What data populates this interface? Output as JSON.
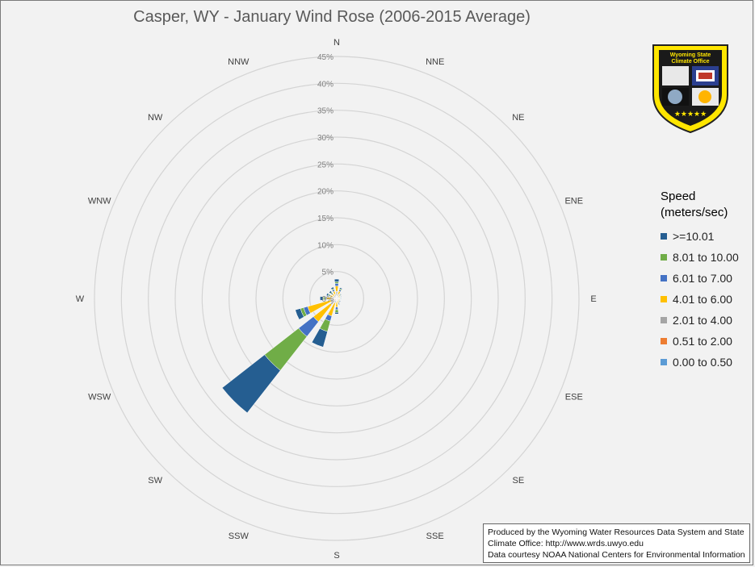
{
  "chart_data": {
    "type": "radar",
    "title": "Casper, WY - January Wind Rose (2006-2015 Average)",
    "directions": [
      "N",
      "NNE",
      "NE",
      "ENE",
      "E",
      "ESE",
      "SE",
      "SSE",
      "S",
      "SSW",
      "SW",
      "WSW",
      "W",
      "WNW",
      "NW",
      "NNW"
    ],
    "radial_ticks": [
      "0%",
      "5%",
      "10%",
      "15%",
      "20%",
      "25%",
      "30%",
      "35%",
      "40%",
      "45%"
    ],
    "rlim": [
      0,
      45
    ],
    "stacked": true,
    "legend_title": [
      "Speed",
      "(meters/sec)"
    ],
    "legend_placement": "right",
    "series": [
      {
        "name": "0.00 to 0.50",
        "color": "#5b9bd5",
        "values": [
          0.2,
          0.1,
          0.1,
          0.1,
          0.1,
          0.1,
          0.1,
          0.1,
          0.1,
          0.1,
          0.2,
          0.1,
          0.1,
          0.1,
          0.1,
          0.1
        ]
      },
      {
        "name": "0.51 to 2.00",
        "color": "#ed7d31",
        "values": [
          0.3,
          0.2,
          0.1,
          0.1,
          0.1,
          0.1,
          0.1,
          0.1,
          0.2,
          0.2,
          0.3,
          0.2,
          0.2,
          0.2,
          0.2,
          0.2
        ]
      },
      {
        "name": "2.01 to 4.00",
        "color": "#a5a5a5",
        "values": [
          0.8,
          0.5,
          0.3,
          0.2,
          0.2,
          0.2,
          0.2,
          0.3,
          0.4,
          0.6,
          1.0,
          0.8,
          0.6,
          0.5,
          0.4,
          0.5
        ]
      },
      {
        "name": "4.01 to 6.00",
        "color": "#ffc000",
        "values": [
          1.0,
          0.6,
          0.3,
          0.2,
          0.2,
          0.2,
          0.2,
          0.4,
          0.9,
          2.5,
          4.0,
          4.5,
          1.0,
          0.5,
          0.4,
          0.6
        ]
      },
      {
        "name": "6.01 to 7.00",
        "color": "#4472c4",
        "values": [
          0.5,
          0.3,
          0.1,
          0.1,
          0.1,
          0.1,
          0.1,
          0.2,
          0.5,
          1.0,
          3.5,
          0.8,
          0.3,
          0.2,
          0.2,
          0.3
        ]
      },
      {
        "name": "8.01 to 10.00",
        "color": "#70ad47",
        "values": [
          0.3,
          0.2,
          0.1,
          0.1,
          0.1,
          0.0,
          0.1,
          0.1,
          0.5,
          2.0,
          8.0,
          0.6,
          0.3,
          0.2,
          0.2,
          0.2
        ]
      },
      {
        "name": ">=10.01",
        "color": "#255e91",
        "values": [
          0.5,
          0.2,
          0.1,
          0.1,
          0.1,
          0.0,
          0.1,
          0.1,
          0.3,
          3.0,
          10.0,
          1.0,
          0.6,
          0.3,
          0.3,
          0.3
        ]
      }
    ]
  },
  "legend": {
    "title_line1": "Speed",
    "title_line2": "(meters/sec)",
    "items": [
      {
        "label": ">=10.01",
        "color": "#255e91"
      },
      {
        "label": "8.01 to 10.00",
        "color": "#70ad47"
      },
      {
        "label": "6.01 to 7.00",
        "color": "#4472c4"
      },
      {
        "label": "4.01 to 6.00",
        "color": "#ffc000"
      },
      {
        "label": "2.01 to 4.00",
        "color": "#a5a5a5"
      },
      {
        "label": "0.51 to 2.00",
        "color": "#ed7d31"
      },
      {
        "label": "0.00 to 0.50",
        "color": "#5b9bd5"
      }
    ]
  },
  "credits": {
    "line1": "Produced by the Wyoming Water Resources Data System and State",
    "line2": "Climate Office: http://www.wrds.uwyo.edu",
    "line3": "Data courtesy NOAA National Centers for Environmental Information"
  },
  "badge": {
    "text_line1": "Wyoming State",
    "text_line2": "Climate Office"
  }
}
